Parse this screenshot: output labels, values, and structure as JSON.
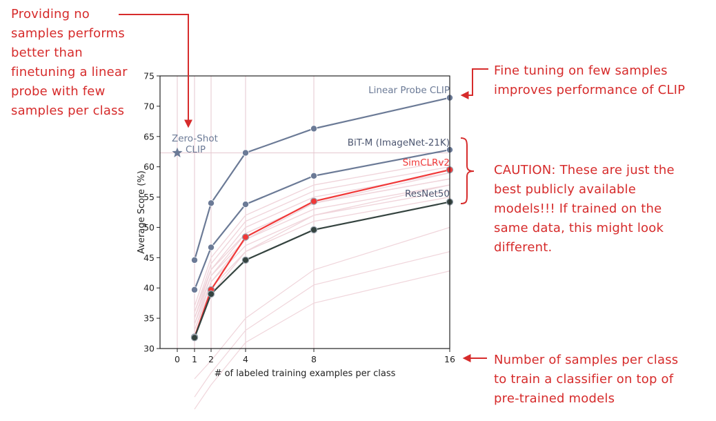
{
  "colors": {
    "annotation": "#d62b2b",
    "slate": "#6b7a96",
    "simclr": "#f03838",
    "resnet": "#34433f",
    "grid": "#e5c7cf",
    "faint": "#f0d5db"
  },
  "annotations": {
    "zero_shot_note": [
      "Providing no",
      "samples performs",
      "better than",
      "finetuning a linear",
      "probe with few",
      "samples per class"
    ],
    "finetune_note": [
      "Fine tuning on few samples",
      "improves performance of CLIP"
    ],
    "caution_note": [
      "CAUTION: These are just the",
      "best publicly available",
      "models!!! If trained on the",
      "same data, this might look",
      "different."
    ],
    "xaxis_note": [
      "Number of samples per class",
      "to train a classifier on top of",
      "pre-trained models"
    ]
  },
  "chart_data": {
    "type": "line",
    "xlabel": "# of labeled training examples per class",
    "ylabel": "Average Score (%)",
    "x_ticks": [
      0,
      1,
      2,
      4,
      8,
      16
    ],
    "y_ticks": [
      30,
      35,
      40,
      45,
      50,
      55,
      60,
      65,
      70,
      75
    ],
    "ylim": [
      30,
      75
    ],
    "grid": "vertical lines at x ticks",
    "series": [
      {
        "name": "Linear Probe CLIP",
        "color": "#6b7a96",
        "x": [
          1,
          2,
          4,
          8,
          16
        ],
        "y": [
          44.6,
          54.0,
          62.3,
          66.3,
          71.4
        ]
      },
      {
        "name": "BiT-M (ImageNet-21K)",
        "color": "#6b7a96",
        "x": [
          1,
          2,
          4,
          8,
          16
        ],
        "y": [
          39.7,
          46.7,
          53.8,
          58.5,
          62.8
        ]
      },
      {
        "name": "SimCLRv2",
        "color": "#f03838",
        "x": [
          1,
          2,
          4,
          8,
          16
        ],
        "y": [
          31.9,
          39.7,
          48.4,
          54.3,
          59.5
        ]
      },
      {
        "name": "ResNet50",
        "color": "#34433f",
        "x": [
          1,
          2,
          4,
          8,
          16
        ],
        "y": [
          31.8,
          39.0,
          44.6,
          49.6,
          54.2
        ]
      }
    ],
    "zero_shot": {
      "label_lines": [
        "Zero-Shot",
        "CLIP"
      ],
      "x": 0,
      "y": 62.3
    }
  }
}
